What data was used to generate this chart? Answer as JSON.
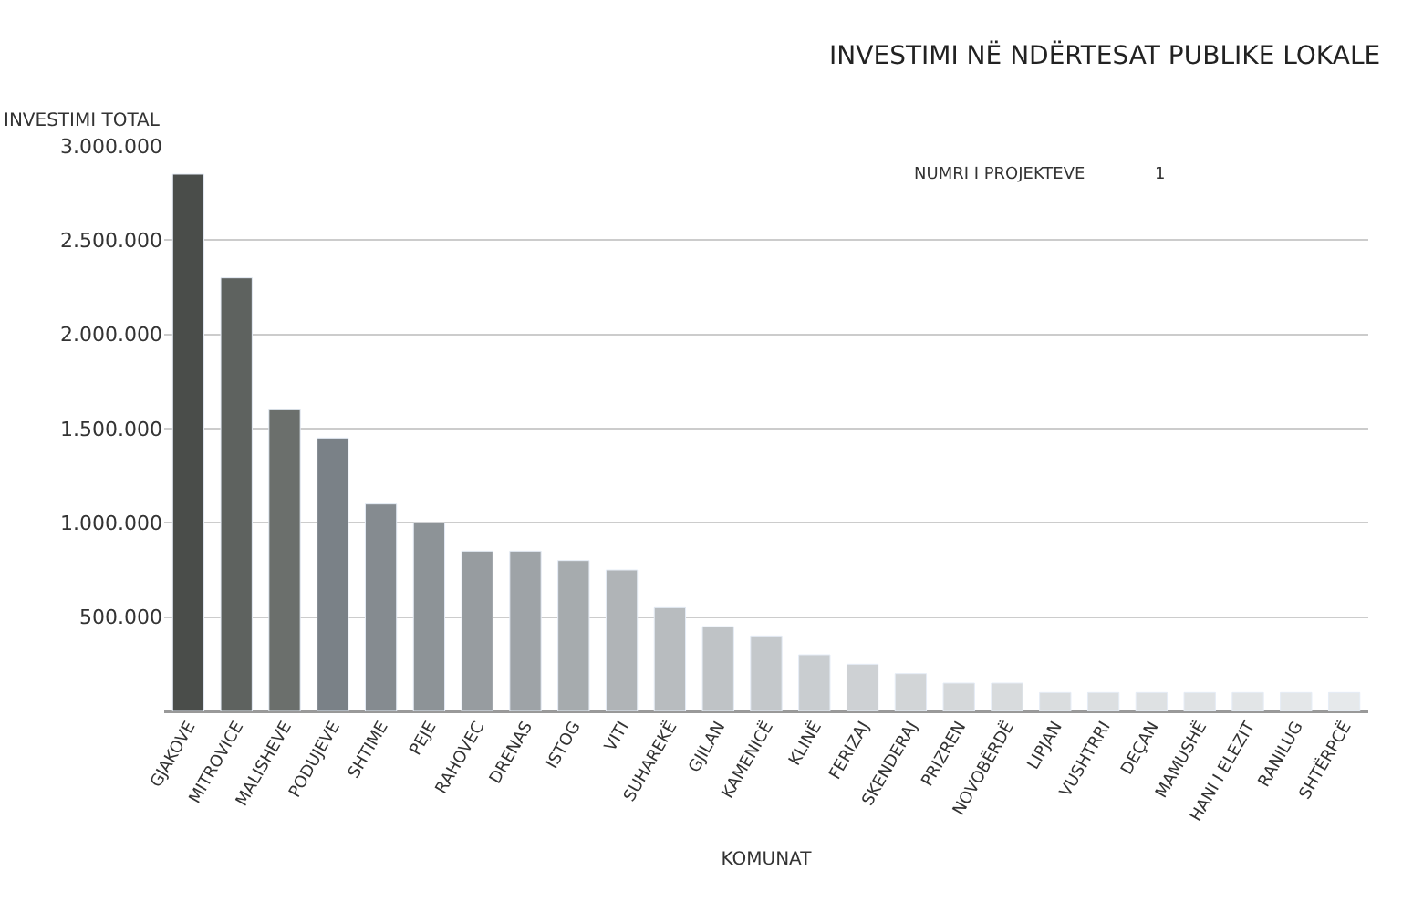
{
  "chart_data": {
    "type": "bar",
    "title": "INVESTIMI NË NDËRTESAT PUBLIKE LOKALE",
    "xlabel": "KOMUNAT",
    "ylabel": "INVESTIMI TOTAL",
    "categories": [
      "GJAKOVE",
      "MITROVICE",
      "MALISHEVE",
      "PODUJEVE",
      "SHTIME",
      "PEJE",
      "RAHOVEC",
      "DRENAS",
      "ISTOG",
      "VITI",
      "SUHAREKË",
      "GJILAN",
      "KAMENICË",
      "KLINË",
      "FERIZAJ",
      "SKENDERAJ",
      "PRIZREN",
      "NOVOBËRDË",
      "LIPJAN",
      "VUSHTRRI",
      "DEÇAN",
      "MAMUSHË",
      "HANI I ELEZIT",
      "RANILUG",
      "SHTËRPCË"
    ],
    "values": [
      2850000,
      2300000,
      1600000,
      1450000,
      1100000,
      1000000,
      850000,
      850000,
      800000,
      750000,
      550000,
      450000,
      400000,
      300000,
      250000,
      200000,
      150000,
      150000,
      100000,
      100000,
      100000,
      100000,
      100000,
      100000,
      100000
    ],
    "colors": [
      "#4a4d4a",
      "#5e625f",
      "#6b6f6c",
      "#7a8187",
      "#858b90",
      "#8d9397",
      "#979ca0",
      "#9ea3a7",
      "#a6abae",
      "#b0b4b7",
      "#b8bcbf",
      "#bfc3c6",
      "#c4c8cb",
      "#c9cdd0",
      "#ced1d4",
      "#d2d5d7",
      "#d5d8da",
      "#d8dbdd",
      "#dadddf",
      "#dcdfe1",
      "#dee1e3",
      "#e0e3e5",
      "#e2e5e7",
      "#e4e7e9",
      "#e6e9eb"
    ],
    "ylim": [
      0,
      3000000
    ],
    "yticks": [
      {
        "value": 500000,
        "label": "500.000"
      },
      {
        "value": 1000000,
        "label": "1.000.000"
      },
      {
        "value": 1500000,
        "label": "1.500.000"
      },
      {
        "value": 2000000,
        "label": "2.000.000"
      },
      {
        "value": 2500000,
        "label": "2.500.000"
      },
      {
        "value": 3000000,
        "label": "3.000.000"
      }
    ],
    "grid": "y",
    "annotations": [
      "NUMRI I PROJEKTEVE",
      "1"
    ]
  }
}
